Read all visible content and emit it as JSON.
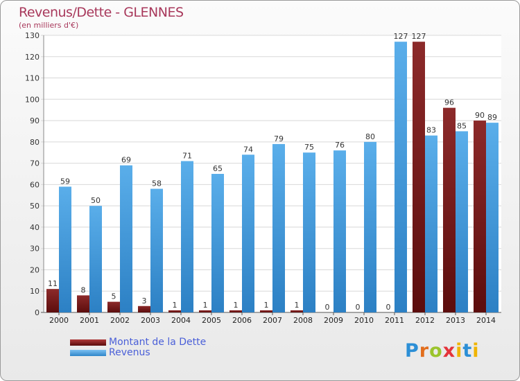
{
  "header": {
    "title": "Revenus/Dette - GLENNES",
    "subtitle": "(en milliers d'€)"
  },
  "legend": {
    "dette_label": "Montant de la Dette",
    "revenus_label": "Revenus"
  },
  "logo": {
    "text": "Proxiti"
  },
  "colors": {
    "dette": "#7a1a1a",
    "revenus": "#4aa3e6",
    "title": "#a8385b",
    "legend_text": "#4a5fd8"
  },
  "chart_data": {
    "type": "bar",
    "categories": [
      "2000",
      "2001",
      "2002",
      "2003",
      "2004",
      "2005",
      "2006",
      "2007",
      "2008",
      "2009",
      "2010",
      "2011",
      "2012",
      "2013",
      "2014"
    ],
    "series": [
      {
        "name": "Montant de la Dette",
        "values": [
          11,
          8,
          5,
          3,
          1,
          1,
          1,
          1,
          1,
          0,
          0,
          0,
          127,
          96,
          90
        ]
      },
      {
        "name": "Revenus",
        "values": [
          59,
          50,
          69,
          58,
          71,
          65,
          74,
          79,
          75,
          76,
          80,
          127,
          83,
          85,
          89
        ]
      }
    ],
    "ylim": [
      0,
      130
    ],
    "yticks": [
      0,
      10,
      20,
      30,
      40,
      50,
      60,
      70,
      80,
      90,
      100,
      110,
      120,
      130
    ],
    "grid": true
  }
}
